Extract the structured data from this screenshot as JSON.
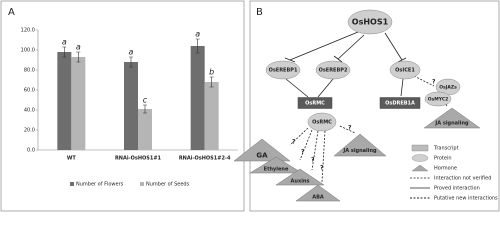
{
  "panel_labels": [
    "A",
    "B"
  ],
  "chart_data": {
    "type": "bar",
    "categories": [
      "WT",
      "RNAi-OsHOS1#1",
      "RNAi-OsHOS1#2-4"
    ],
    "series": [
      {
        "name": "Number of Flowers",
        "color": "#6e6e6e",
        "values": [
          98,
          88,
          104
        ],
        "errors": [
          5,
          5,
          7
        ],
        "annotations": [
          "a",
          "a",
          "a"
        ]
      },
      {
        "name": "Number of Seeds",
        "color": "#b5b5b5",
        "values": [
          93,
          41,
          68
        ],
        "errors": [
          5,
          4,
          5
        ],
        "annotations": [
          "a",
          "c",
          "b"
        ]
      }
    ],
    "ylim": [
      0,
      120
    ],
    "yticks": [
      {
        "value": 0,
        "label": "0.0"
      },
      {
        "value": 20,
        "label": "20.0"
      },
      {
        "value": 40,
        "label": "40.0"
      },
      {
        "value": 60,
        "label": "60.0"
      },
      {
        "value": 80,
        "label": "80.0"
      },
      {
        "value": 100,
        "label": "100.0"
      },
      {
        "value": 120,
        "label": "120.0"
      }
    ],
    "grid": false
  },
  "diagram": {
    "nodes": [
      {
        "label": "OsHOS1"
      },
      {
        "label": "OsEREBP1"
      },
      {
        "label": "OsEREBP2"
      },
      {
        "label": "OsICE1"
      },
      {
        "label": "OsRMC"
      },
      {
        "label": "OsRMC"
      },
      {
        "label": "OsDREB1A"
      },
      {
        "label": "OsJAZs"
      },
      {
        "label": "OsMYC2"
      },
      {
        "label": "JA signaling"
      },
      {
        "label": "GA"
      },
      {
        "label": "Ethylene"
      },
      {
        "label": "Auxins"
      },
      {
        "label": "ABA"
      },
      {
        "label": "JA signaling"
      }
    ],
    "question_mark": "?",
    "legend": [
      "Transcript",
      "Protein",
      "Hormone",
      "Interaction not verified",
      "Proved interaction",
      "Putative new interactions"
    ]
  }
}
